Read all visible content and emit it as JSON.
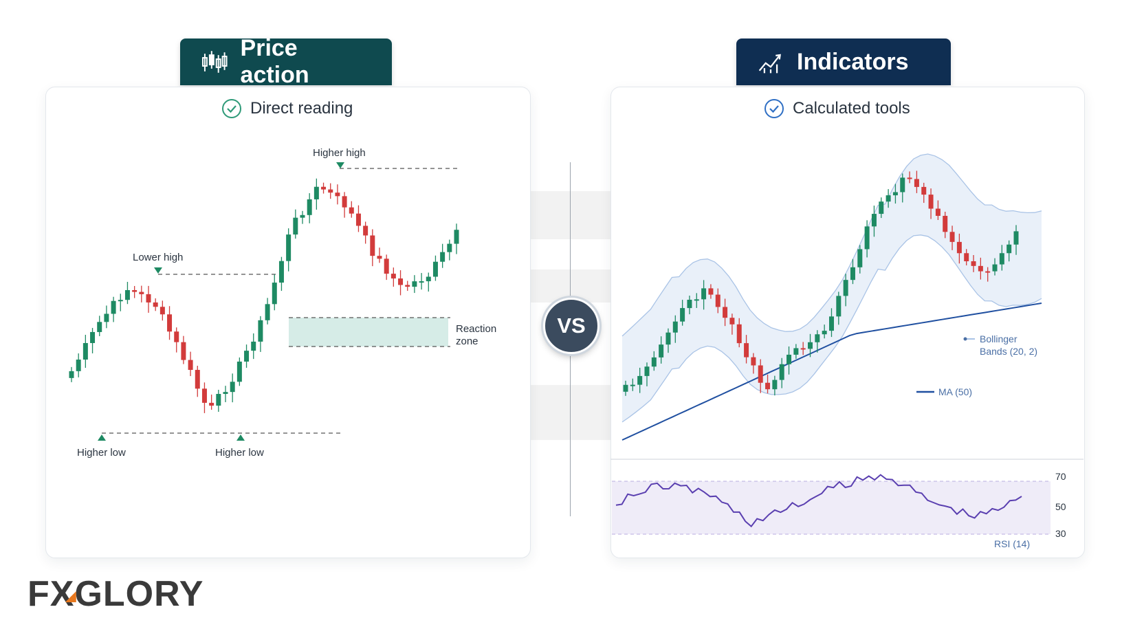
{
  "header_left": {
    "title": "Price action",
    "icon": "candlestick-icon"
  },
  "header_right": {
    "title": "Indicators",
    "icon": "trend-chart-icon"
  },
  "left_panel": {
    "subtitle": "Direct reading",
    "annotations": {
      "higher_high": "Higher high",
      "lower_high": "Lower high",
      "higher_low_1": "Higher low",
      "higher_low_2": "Higher low",
      "reaction_zone_line1": "Reaction",
      "reaction_zone_line2": "zone"
    }
  },
  "right_panel": {
    "subtitle": "Calculated tools",
    "legend": {
      "bollinger_line1": "Bollinger",
      "bollinger_line2": "Bands (20, 2)",
      "ma": "MA (50)"
    },
    "rsi": {
      "label": "RSI (14)",
      "levels": [
        "70",
        "50",
        "30"
      ]
    }
  },
  "vs_label": "VS",
  "logo": {
    "part1": "F",
    "part2": "X",
    "part3": "GLORY"
  },
  "colors": {
    "bull": "#1e8a63",
    "bear": "#d23b3b",
    "zone": "#cfe9e3",
    "ma": "#1f4fa0",
    "band": "#a9c3e6",
    "rsi": "#5a3fb0",
    "tab_left": "#0f4a4f",
    "tab_right": "#0f2e52"
  }
}
